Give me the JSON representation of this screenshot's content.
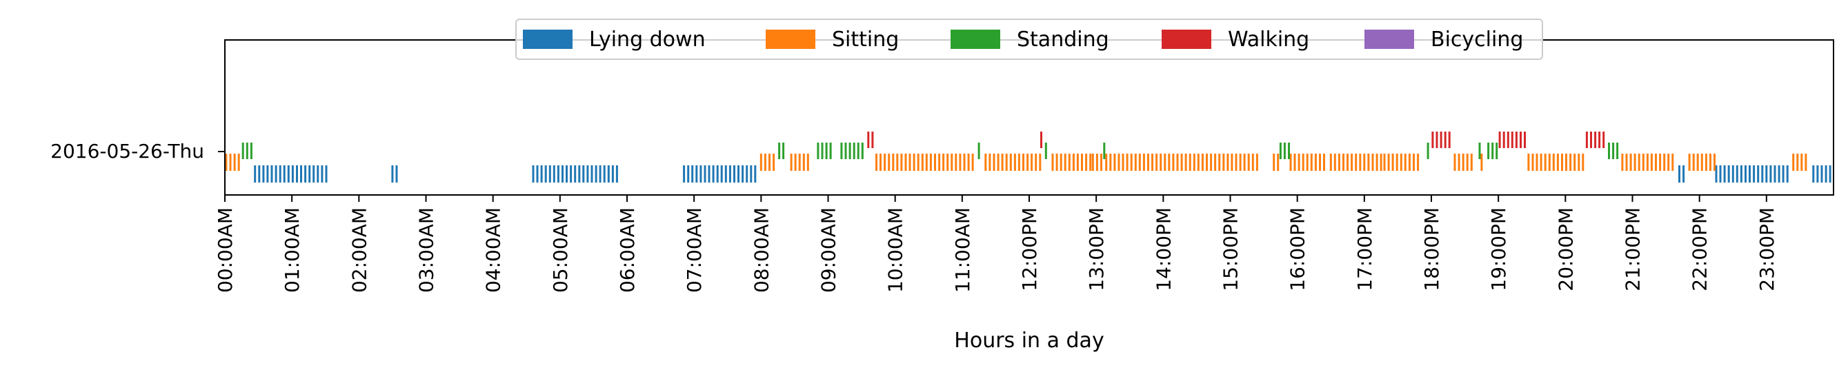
{
  "chart_data": {
    "type": "timeline",
    "xlabel": "Hours in a day",
    "ylabel": "",
    "xlim": [
      0,
      24
    ],
    "row_label": "2016-05-26-Thu",
    "x_tick_labels": [
      "00:00AM",
      "01:00AM",
      "02:00AM",
      "03:00AM",
      "04:00AM",
      "05:00AM",
      "06:00AM",
      "07:00AM",
      "08:00AM",
      "09:00AM",
      "10:00AM",
      "11:00AM",
      "12:00PM",
      "13:00PM",
      "14:00PM",
      "15:00PM",
      "16:00PM",
      "17:00PM",
      "18:00PM",
      "19:00PM",
      "20:00PM",
      "21:00PM",
      "22:00PM",
      "23:00PM"
    ],
    "legend_position": "upper center",
    "colors": {
      "Lying down": "#1f77b4",
      "Sitting": "#ff7f0e",
      "Standing": "#2ca02c",
      "Walking": "#d62728",
      "Bicycling": "#9467bd"
    },
    "series": [
      {
        "name": "Lying down",
        "intervals": [
          [
            0.45,
            1.55
          ],
          [
            2.5,
            2.62
          ],
          [
            4.6,
            5.9
          ],
          [
            6.85,
            7.95
          ],
          [
            21.7,
            21.82
          ],
          [
            22.25,
            23.35
          ],
          [
            23.7,
            24.0
          ]
        ]
      },
      {
        "name": "Sitting",
        "intervals": [
          [
            0.02,
            0.22
          ],
          [
            8.0,
            8.22
          ],
          [
            8.45,
            8.75
          ],
          [
            9.72,
            11.2
          ],
          [
            11.35,
            12.2
          ],
          [
            12.35,
            12.95
          ],
          [
            12.95,
            13.1
          ],
          [
            13.15,
            15.45
          ],
          [
            15.65,
            15.72
          ],
          [
            15.9,
            16.4
          ],
          [
            16.5,
            17.3
          ],
          [
            17.3,
            17.85
          ],
          [
            18.35,
            18.62
          ],
          [
            18.75,
            18.8
          ],
          [
            19.45,
            20.3
          ],
          [
            20.85,
            21.65
          ],
          [
            21.85,
            22.25
          ],
          [
            23.4,
            23.6
          ]
        ]
      },
      {
        "name": "Standing",
        "intervals": [
          [
            0.27,
            0.42
          ],
          [
            8.27,
            8.38
          ],
          [
            8.85,
            9.05
          ],
          [
            9.2,
            9.52
          ],
          [
            11.25,
            11.28
          ],
          [
            12.25,
            12.3
          ],
          [
            13.12,
            13.15
          ],
          [
            15.75,
            15.88
          ],
          [
            17.95,
            17.98
          ],
          [
            18.72,
            18.75
          ],
          [
            18.85,
            18.98
          ],
          [
            20.65,
            20.78
          ]
        ]
      },
      {
        "name": "Walking",
        "intervals": [
          [
            9.6,
            9.72
          ],
          [
            12.18,
            12.21
          ],
          [
            18.02,
            18.32
          ],
          [
            19.02,
            19.42
          ],
          [
            20.32,
            20.62
          ]
        ]
      },
      {
        "name": "Bicycling",
        "intervals": []
      }
    ]
  }
}
